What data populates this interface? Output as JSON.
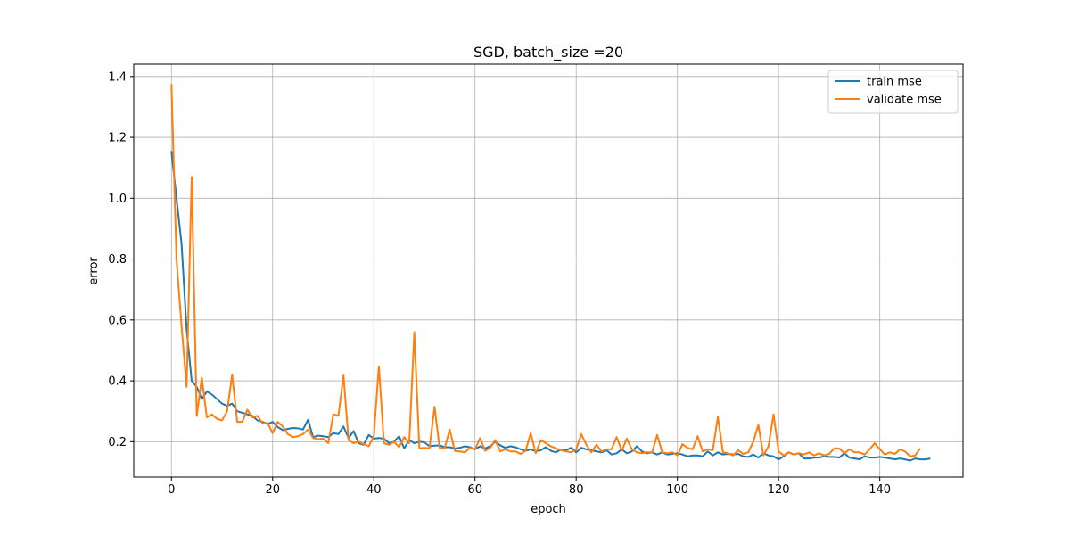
{
  "chart_data": {
    "type": "line",
    "title": "SGD, batch_size =20",
    "xlabel": "epoch",
    "ylabel": "error",
    "xlim": [
      -7.45,
      156.45
    ],
    "ylim": [
      0.0838,
      1.4404
    ],
    "x_ticks": [
      0,
      20,
      40,
      60,
      80,
      100,
      120,
      140
    ],
    "y_ticks": [
      0.2,
      0.4,
      0.6,
      0.8,
      1.0,
      1.2,
      1.4
    ],
    "x_tick_labels": [
      "0",
      "20",
      "40",
      "60",
      "80",
      "100",
      "120",
      "140"
    ],
    "y_tick_labels": [
      "0.2",
      "0.4",
      "0.6",
      "0.8",
      "1.0",
      "1.2",
      "1.4"
    ],
    "grid": true,
    "legend_position": "upper right",
    "x_start": 0,
    "series": [
      {
        "name": "train mse",
        "color": "#1f77b4",
        "values": [
          1.155,
          1.0,
          0.85,
          0.57,
          0.4,
          0.38,
          0.34,
          0.365,
          0.355,
          0.34,
          0.325,
          0.318,
          0.325,
          0.3,
          0.295,
          0.29,
          0.285,
          0.27,
          0.265,
          0.258,
          0.265,
          0.248,
          0.238,
          0.242,
          0.245,
          0.244,
          0.24,
          0.272,
          0.215,
          0.22,
          0.218,
          0.215,
          0.228,
          0.225,
          0.25,
          0.212,
          0.235,
          0.195,
          0.19,
          0.222,
          0.21,
          0.212,
          0.21,
          0.195,
          0.2,
          0.218,
          0.178,
          0.205,
          0.195,
          0.2,
          0.198,
          0.185,
          0.187,
          0.188,
          0.182,
          0.182,
          0.178,
          0.18,
          0.185,
          0.182,
          0.175,
          0.185,
          0.178,
          0.185,
          0.2,
          0.188,
          0.18,
          0.185,
          0.182,
          0.175,
          0.17,
          0.175,
          0.168,
          0.172,
          0.182,
          0.17,
          0.165,
          0.175,
          0.172,
          0.18,
          0.165,
          0.18,
          0.175,
          0.172,
          0.168,
          0.165,
          0.172,
          0.158,
          0.162,
          0.175,
          0.162,
          0.168,
          0.185,
          0.168,
          0.162,
          0.165,
          0.158,
          0.165,
          0.158,
          0.16,
          0.162,
          0.158,
          0.152,
          0.155,
          0.155,
          0.152,
          0.168,
          0.155,
          0.165,
          0.158,
          0.16,
          0.158,
          0.16,
          0.152,
          0.15,
          0.158,
          0.148,
          0.162,
          0.155,
          0.152,
          0.142,
          0.152,
          0.165,
          0.158,
          0.162,
          0.145,
          0.145,
          0.148,
          0.148,
          0.152,
          0.15,
          0.15,
          0.148,
          0.162,
          0.148,
          0.145,
          0.142,
          0.152,
          0.148,
          0.148,
          0.15,
          0.148,
          0.145,
          0.142,
          0.145,
          0.142,
          0.138,
          0.145,
          0.142,
          0.142,
          0.145
        ]
      },
      {
        "name": "validate mse",
        "color": "#ff7f0e",
        "values": [
          1.375,
          0.8,
          0.58,
          0.38,
          1.07,
          0.285,
          0.41,
          0.28,
          0.29,
          0.275,
          0.27,
          0.3,
          0.42,
          0.265,
          0.265,
          0.305,
          0.28,
          0.285,
          0.26,
          0.262,
          0.228,
          0.265,
          0.25,
          0.225,
          0.215,
          0.218,
          0.225,
          0.24,
          0.212,
          0.208,
          0.21,
          0.195,
          0.29,
          0.285,
          0.418,
          0.205,
          0.195,
          0.2,
          0.192,
          0.185,
          0.218,
          0.448,
          0.195,
          0.19,
          0.2,
          0.182,
          0.215,
          0.195,
          0.56,
          0.178,
          0.18,
          0.178,
          0.315,
          0.18,
          0.178,
          0.24,
          0.17,
          0.168,
          0.165,
          0.18,
          0.175,
          0.212,
          0.17,
          0.18,
          0.205,
          0.168,
          0.175,
          0.168,
          0.168,
          0.16,
          0.17,
          0.228,
          0.162,
          0.205,
          0.195,
          0.185,
          0.178,
          0.172,
          0.168,
          0.165,
          0.175,
          0.225,
          0.19,
          0.165,
          0.19,
          0.168,
          0.175,
          0.175,
          0.215,
          0.17,
          0.21,
          0.175,
          0.165,
          0.162,
          0.165,
          0.165,
          0.222,
          0.165,
          0.162,
          0.165,
          0.155,
          0.192,
          0.18,
          0.175,
          0.218,
          0.168,
          0.175,
          0.172,
          0.282,
          0.165,
          0.162,
          0.155,
          0.172,
          0.16,
          0.165,
          0.2,
          0.255,
          0.155,
          0.185,
          0.29,
          0.168,
          0.155,
          0.165,
          0.158,
          0.162,
          0.158,
          0.165,
          0.155,
          0.162,
          0.155,
          0.16,
          0.178,
          0.178,
          0.162,
          0.175,
          0.165,
          0.165,
          0.158,
          0.175,
          0.195,
          0.175,
          0.158,
          0.165,
          0.16,
          0.175,
          0.168,
          0.152,
          0.155,
          0.178
        ]
      }
    ]
  }
}
